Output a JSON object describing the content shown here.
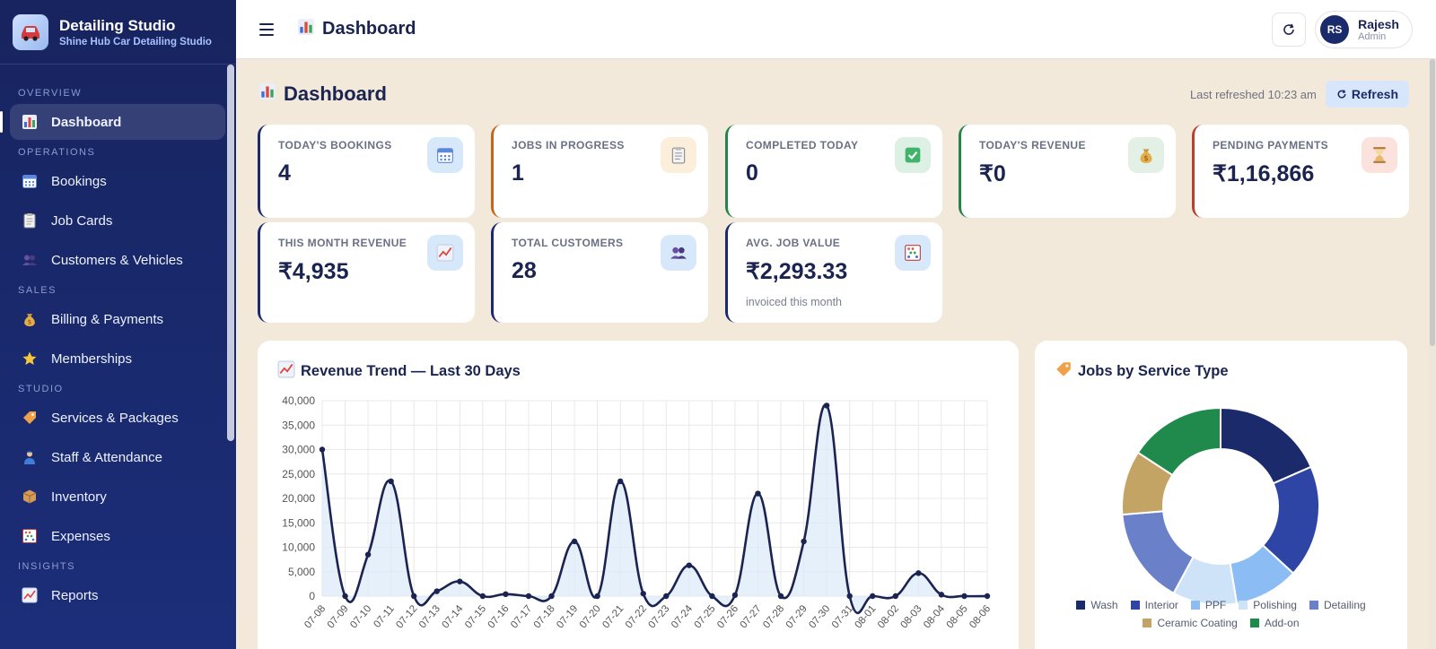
{
  "brand": {
    "title": "Detailing Studio",
    "subtitle": "Shine Hub Car Detailing Studio"
  },
  "sidebar": {
    "sections": [
      {
        "label": "OVERVIEW",
        "items": [
          {
            "label": "Dashboard",
            "icon": "chart-icon",
            "active": true
          }
        ]
      },
      {
        "label": "OPERATIONS",
        "items": [
          {
            "label": "Bookings",
            "icon": "calendar-icon"
          },
          {
            "label": "Job Cards",
            "icon": "clipboard-icon"
          },
          {
            "label": "Customers & Vehicles",
            "icon": "users-icon"
          }
        ]
      },
      {
        "label": "SALES",
        "items": [
          {
            "label": "Billing & Payments",
            "icon": "money-bag-icon"
          },
          {
            "label": "Memberships",
            "icon": "star-icon"
          }
        ]
      },
      {
        "label": "STUDIO",
        "items": [
          {
            "label": "Services & Packages",
            "icon": "tag-icon"
          },
          {
            "label": "Staff & Attendance",
            "icon": "worker-icon"
          },
          {
            "label": "Inventory",
            "icon": "box-icon"
          },
          {
            "label": "Expenses",
            "icon": "abacus-icon"
          }
        ]
      },
      {
        "label": "INSIGHTS",
        "items": [
          {
            "label": "Reports",
            "icon": "trend-icon"
          }
        ]
      }
    ]
  },
  "topbar": {
    "title": "Dashboard",
    "user": {
      "initials": "RS",
      "name": "Rajesh",
      "role": "Admin"
    }
  },
  "page": {
    "title": "Dashboard",
    "last_refreshed": "Last refreshed 10:23 am",
    "refresh_label": "Refresh"
  },
  "stats": [
    {
      "label": "TODAY'S BOOKINGS",
      "value": "4",
      "sub": "",
      "accent": "#1b2a6b",
      "badge_bg": "#d8e8fb",
      "icon": "calendar-icon"
    },
    {
      "label": "JOBS IN PROGRESS",
      "value": "1",
      "sub": "",
      "accent": "#c0661e",
      "badge_bg": "#fbeedb",
      "icon": "clipboard-icon"
    },
    {
      "label": "COMPLETED TODAY",
      "value": "0",
      "sub": "",
      "accent": "#23854a",
      "badge_bg": "#dcf1e3",
      "icon": "check-icon"
    },
    {
      "label": "TODAY'S REVENUE",
      "value": "₹0",
      "sub": "",
      "accent": "#23854a",
      "badge_bg": "#e3f0e6",
      "icon": "money-bag-icon"
    },
    {
      "label": "PENDING PAYMENTS",
      "value": "₹1,16,866",
      "sub": "",
      "accent": "#b8412e",
      "badge_bg": "#fbe2dc",
      "icon": "hourglass-icon"
    },
    {
      "label": "THIS MONTH REVENUE",
      "value": "₹4,935",
      "sub": "",
      "accent": "#1b2a6b",
      "badge_bg": "#d8e8fb",
      "icon": "trend-icon"
    },
    {
      "label": "TOTAL CUSTOMERS",
      "value": "28",
      "sub": "",
      "accent": "#1b2a6b",
      "badge_bg": "#d8e8fb",
      "icon": "users-icon"
    },
    {
      "label": "AVG. JOB VALUE",
      "value": "₹2,293.33",
      "sub": "invoiced this month",
      "accent": "#1b2a6b",
      "badge_bg": "#d8e8fb",
      "icon": "abacus-icon"
    }
  ],
  "revenue_panel": {
    "title": "Revenue Trend — Last 30 Days",
    "icon": "trend-icon"
  },
  "service_panel": {
    "title": "Jobs by Service Type",
    "icon": "tag-icon"
  },
  "chart_data": [
    {
      "type": "area",
      "title": "Revenue Trend — Last 30 Days",
      "x": [
        "07-08",
        "07-09",
        "07-10",
        "07-11",
        "07-12",
        "07-13",
        "07-14",
        "07-15",
        "07-16",
        "07-17",
        "07-18",
        "07-19",
        "07-20",
        "07-21",
        "07-22",
        "07-23",
        "07-24",
        "07-25",
        "07-26",
        "07-27",
        "07-28",
        "07-29",
        "07-30",
        "07-31",
        "08-01",
        "08-02",
        "08-03",
        "08-04",
        "08-05",
        "08-06"
      ],
      "series": [
        {
          "values": [
            30000,
            0,
            8500,
            23500,
            0,
            1000,
            3000,
            0,
            400,
            0,
            0,
            11200,
            0,
            23500,
            500,
            0,
            6300,
            0,
            200,
            21000,
            0,
            11200,
            39000,
            0,
            0,
            0,
            4700,
            300,
            0,
            0
          ]
        }
      ],
      "ylim": [
        0,
        40000
      ],
      "yticks": [
        0,
        5000,
        10000,
        15000,
        20000,
        25000,
        30000,
        35000,
        40000
      ],
      "grid": true,
      "line_color": "#1b2450",
      "fill_color": "#dbe9f8"
    },
    {
      "type": "pie",
      "title": "Jobs by Service Type",
      "donut": true,
      "categories": [
        "Wash",
        "Interior",
        "PPF",
        "Polishing",
        "Detailing",
        "Ceramic Coating",
        "Add-on"
      ],
      "values": [
        7,
        7,
        4,
        4,
        6,
        4,
        6
      ],
      "colors": [
        "#1b2a6b",
        "#2e45a5",
        "#8bbcf4",
        "#cfe3f8",
        "#6a80c9",
        "#c4a464",
        "#1f8a4c"
      ],
      "legend": "bottom"
    }
  ]
}
